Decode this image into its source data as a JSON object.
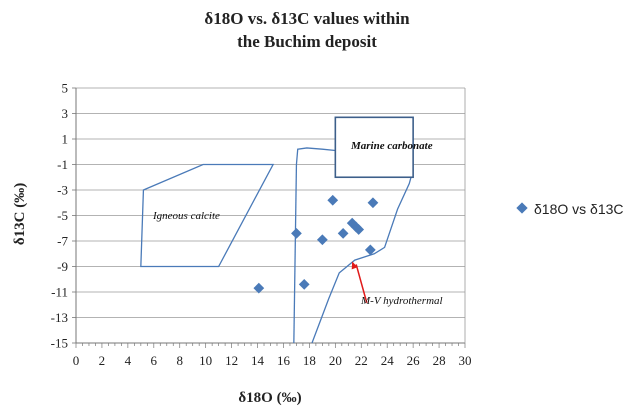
{
  "chart_data": {
    "type": "scatter",
    "title_line1": "δ18O vs. δ13C values within",
    "title_line2": "the Buchim deposit",
    "xlabel": "δ18O (‰)",
    "ylabel": "δ13C (‰)",
    "xlim": [
      0,
      30
    ],
    "ylim": [
      -15,
      5
    ],
    "x_ticks": [
      0,
      2,
      4,
      6,
      8,
      10,
      12,
      14,
      16,
      18,
      20,
      22,
      24,
      26,
      28,
      30
    ],
    "y_ticks": [
      5,
      3,
      1,
      -1,
      -3,
      -5,
      -7,
      -9,
      -11,
      -13,
      -15
    ],
    "legend_position": "right",
    "grid": "horizontal",
    "colors": {
      "marker": "#4a7ab8",
      "field_line": "#4a7ab8",
      "arrow": "#e01a1a"
    },
    "series": [
      {
        "name": "δ18O vs δ13C",
        "points": [
          [
            14.1,
            -10.7
          ],
          [
            17.0,
            -6.4
          ],
          [
            17.6,
            -10.4
          ],
          [
            19.0,
            -6.9
          ],
          [
            19.8,
            -3.8
          ],
          [
            20.6,
            -6.4
          ],
          [
            21.3,
            -5.6
          ],
          [
            21.6,
            -5.9
          ],
          [
            21.8,
            -6.1
          ],
          [
            22.7,
            -7.7
          ],
          [
            22.9,
            -4.0
          ]
        ]
      }
    ],
    "fields": [
      {
        "label": "Igneous calcite",
        "polygon": [
          [
            5.2,
            -3.0
          ],
          [
            9.8,
            -1.0
          ],
          [
            15.2,
            -1.0
          ],
          [
            11.0,
            -9.0
          ],
          [
            5.0,
            -9.0
          ]
        ]
      },
      {
        "label": "Marine carbonate",
        "box": [
          20.0,
          26.0,
          -2.0,
          2.7
        ]
      },
      {
        "label": "M-V hydrothermal",
        "outline": [
          [
            17.0,
            -1.0
          ],
          [
            16.8,
            -15.0
          ],
          null,
          [
            18.2,
            -15.0
          ],
          [
            19.5,
            -11.5
          ],
          [
            20.3,
            -9.5
          ],
          [
            21.5,
            -8.5
          ],
          [
            23.0,
            -8.0
          ],
          [
            23.8,
            -7.5
          ],
          [
            24.8,
            -4.5
          ],
          [
            25.7,
            -2.5
          ],
          [
            26.0,
            -1.4
          ]
        ],
        "top_edge": [
          [
            17.0,
            -1.0
          ],
          [
            17.1,
            0.2
          ],
          [
            17.8,
            0.3
          ],
          [
            19.0,
            0.2
          ],
          [
            20.0,
            0.1
          ]
        ]
      }
    ],
    "annotations": [
      {
        "text": "M-V hydrothermal",
        "at": [
          21.5,
          -12.0
        ],
        "arrow_to": [
          21.3,
          -8.6
        ]
      }
    ]
  }
}
